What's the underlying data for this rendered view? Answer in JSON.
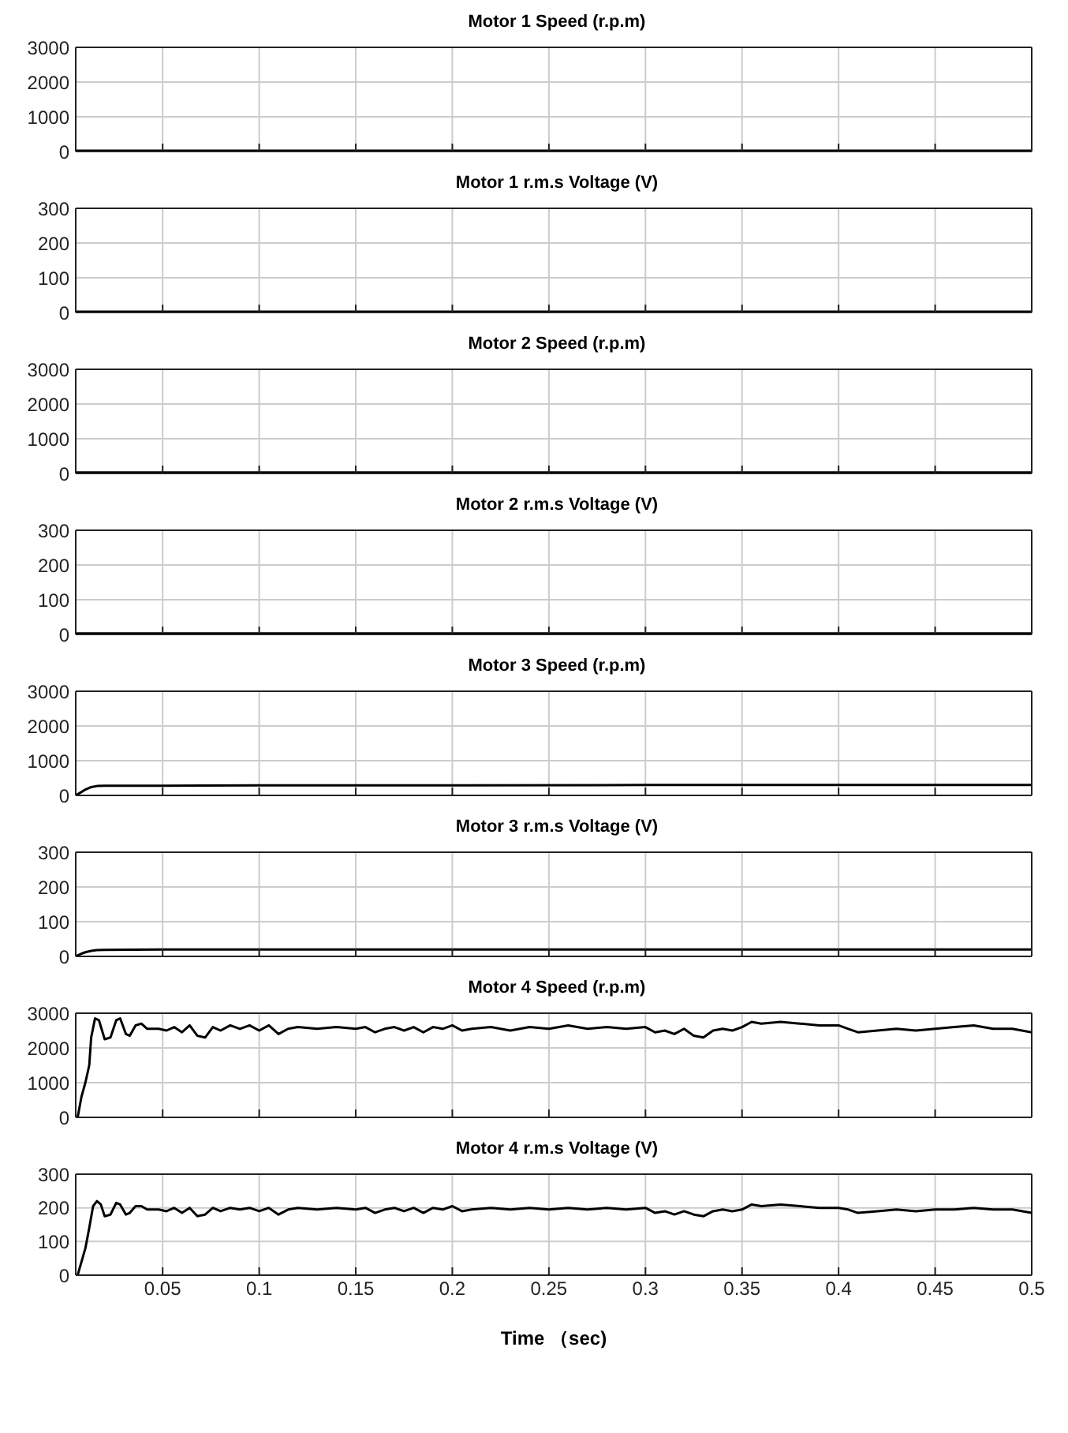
{
  "chart_data": [
    {
      "type": "line",
      "title": "Motor 1 Speed (r.p.m)",
      "x": [
        0.005,
        0.1,
        0.2,
        0.3,
        0.4,
        0.5
      ],
      "series": [
        {
          "color": "#000000",
          "values": [
            20,
            20,
            20,
            20,
            20,
            20
          ]
        }
      ],
      "xlim": [
        0.005,
        0.5
      ],
      "xticks": [
        0.05,
        0.1,
        0.15,
        0.2,
        0.25,
        0.3,
        0.35,
        0.4,
        0.45,
        0.5
      ],
      "ylim": [
        0,
        3000
      ],
      "yticks": [
        0,
        1000,
        2000,
        3000
      ],
      "grid": true,
      "tick_labels": "y"
    },
    {
      "type": "line",
      "title": "Motor 1 r.m.s Voltage (V)",
      "x": [
        0.005,
        0.1,
        0.2,
        0.3,
        0.4,
        0.5
      ],
      "series": [
        {
          "color": "#000000",
          "values": [
            2,
            2,
            2,
            2,
            2,
            2
          ]
        }
      ],
      "xlim": [
        0.005,
        0.5
      ],
      "xticks": [
        0.05,
        0.1,
        0.15,
        0.2,
        0.25,
        0.3,
        0.35,
        0.4,
        0.45,
        0.5
      ],
      "ylim": [
        0,
        300
      ],
      "yticks": [
        0,
        100,
        200,
        300
      ],
      "grid": true,
      "tick_labels": "y"
    },
    {
      "type": "line",
      "title": "Motor 2 Speed (r.p.m)",
      "x": [
        0.005,
        0.1,
        0.2,
        0.3,
        0.4,
        0.5
      ],
      "series": [
        {
          "color": "#000000",
          "values": [
            30,
            30,
            30,
            30,
            30,
            30
          ]
        }
      ],
      "xlim": [
        0.005,
        0.5
      ],
      "xticks": [
        0.05,
        0.1,
        0.15,
        0.2,
        0.25,
        0.3,
        0.35,
        0.4,
        0.45,
        0.5
      ],
      "ylim": [
        0,
        3000
      ],
      "yticks": [
        0,
        1000,
        2000,
        3000
      ],
      "grid": true,
      "tick_labels": "y"
    },
    {
      "type": "line",
      "title": "Motor 2 r.m.s Voltage (V)",
      "x": [
        0.005,
        0.1,
        0.2,
        0.3,
        0.4,
        0.5
      ],
      "series": [
        {
          "color": "#000000",
          "values": [
            3,
            3,
            3,
            3,
            3,
            3
          ]
        }
      ],
      "xlim": [
        0.005,
        0.5
      ],
      "xticks": [
        0.05,
        0.1,
        0.15,
        0.2,
        0.25,
        0.3,
        0.35,
        0.4,
        0.45,
        0.5
      ],
      "ylim": [
        0,
        300
      ],
      "yticks": [
        0,
        100,
        200,
        300
      ],
      "grid": true,
      "tick_labels": "y"
    },
    {
      "type": "line",
      "title": "Motor 3 Speed (r.p.m)",
      "x": [
        0.005,
        0.008,
        0.01,
        0.013,
        0.016,
        0.02,
        0.05,
        0.1,
        0.2,
        0.3,
        0.4,
        0.5
      ],
      "series": [
        {
          "color": "#000000",
          "values": [
            0,
            100,
            170,
            240,
            270,
            280,
            280,
            290,
            290,
            300,
            300,
            300
          ]
        }
      ],
      "xlim": [
        0.005,
        0.5
      ],
      "xticks": [
        0.05,
        0.1,
        0.15,
        0.2,
        0.25,
        0.3,
        0.35,
        0.4,
        0.45,
        0.5
      ],
      "ylim": [
        0,
        3000
      ],
      "yticks": [
        0,
        1000,
        2000,
        3000
      ],
      "grid": true,
      "tick_labels": "y"
    },
    {
      "type": "line",
      "title": "Motor 3 r.m.s Voltage (V)",
      "x": [
        0.005,
        0.008,
        0.01,
        0.013,
        0.016,
        0.02,
        0.05,
        0.1,
        0.2,
        0.3,
        0.4,
        0.5
      ],
      "series": [
        {
          "color": "#000000",
          "values": [
            0,
            8,
            12,
            16,
            18,
            19,
            20,
            20,
            20,
            20,
            20,
            20
          ]
        }
      ],
      "xlim": [
        0.005,
        0.5
      ],
      "xticks": [
        0.05,
        0.1,
        0.15,
        0.2,
        0.25,
        0.3,
        0.35,
        0.4,
        0.45,
        0.5
      ],
      "ylim": [
        0,
        300
      ],
      "yticks": [
        0,
        100,
        200,
        300
      ],
      "grid": true,
      "tick_labels": "y"
    },
    {
      "type": "line",
      "title": "Motor 4 Speed (r.p.m)",
      "x": [
        0.006,
        0.008,
        0.01,
        0.012,
        0.013,
        0.015,
        0.017,
        0.02,
        0.023,
        0.026,
        0.028,
        0.031,
        0.033,
        0.036,
        0.039,
        0.042,
        0.048,
        0.052,
        0.056,
        0.06,
        0.064,
        0.068,
        0.072,
        0.076,
        0.08,
        0.085,
        0.09,
        0.095,
        0.1,
        0.105,
        0.11,
        0.115,
        0.12,
        0.13,
        0.14,
        0.15,
        0.155,
        0.16,
        0.165,
        0.17,
        0.175,
        0.18,
        0.185,
        0.19,
        0.195,
        0.2,
        0.205,
        0.21,
        0.22,
        0.23,
        0.24,
        0.25,
        0.26,
        0.27,
        0.28,
        0.29,
        0.3,
        0.305,
        0.31,
        0.315,
        0.32,
        0.325,
        0.33,
        0.335,
        0.34,
        0.345,
        0.35,
        0.355,
        0.36,
        0.37,
        0.38,
        0.39,
        0.4,
        0.405,
        0.41,
        0.42,
        0.43,
        0.44,
        0.45,
        0.46,
        0.47,
        0.48,
        0.49,
        0.5
      ],
      "series": [
        {
          "color": "#000000",
          "values": [
            0,
            600,
            1000,
            1500,
            2300,
            2850,
            2800,
            2250,
            2300,
            2800,
            2850,
            2400,
            2350,
            2650,
            2700,
            2550,
            2550,
            2500,
            2600,
            2450,
            2650,
            2350,
            2300,
            2600,
            2500,
            2650,
            2550,
            2650,
            2500,
            2650,
            2400,
            2550,
            2600,
            2550,
            2600,
            2550,
            2600,
            2450,
            2550,
            2600,
            2500,
            2600,
            2450,
            2600,
            2550,
            2650,
            2500,
            2550,
            2600,
            2500,
            2600,
            2550,
            2650,
            2550,
            2600,
            2550,
            2600,
            2450,
            2500,
            2400,
            2550,
            2350,
            2300,
            2500,
            2550,
            2500,
            2600,
            2750,
            2700,
            2750,
            2700,
            2650,
            2650,
            2550,
            2450,
            2500,
            2550,
            2500,
            2550,
            2600,
            2650,
            2550,
            2550,
            2450
          ]
        }
      ],
      "xlim": [
        0.005,
        0.5
      ],
      "xticks": [
        0.05,
        0.1,
        0.15,
        0.2,
        0.25,
        0.3,
        0.35,
        0.4,
        0.45,
        0.5
      ],
      "ylim": [
        0,
        3000
      ],
      "yticks": [
        0,
        1000,
        2000,
        3000
      ],
      "grid": true,
      "tick_labels": "y"
    },
    {
      "type": "line",
      "title": "Motor 4 r.m.s Voltage (V)",
      "xlabel": "Time （sec)",
      "x": [
        0.006,
        0.008,
        0.01,
        0.012,
        0.014,
        0.016,
        0.018,
        0.02,
        0.023,
        0.026,
        0.028,
        0.031,
        0.033,
        0.036,
        0.039,
        0.042,
        0.048,
        0.052,
        0.056,
        0.06,
        0.064,
        0.068,
        0.072,
        0.076,
        0.08,
        0.085,
        0.09,
        0.095,
        0.1,
        0.105,
        0.11,
        0.115,
        0.12,
        0.13,
        0.14,
        0.15,
        0.155,
        0.16,
        0.165,
        0.17,
        0.175,
        0.18,
        0.185,
        0.19,
        0.195,
        0.2,
        0.205,
        0.21,
        0.22,
        0.23,
        0.24,
        0.25,
        0.26,
        0.27,
        0.28,
        0.29,
        0.3,
        0.305,
        0.31,
        0.315,
        0.32,
        0.325,
        0.33,
        0.335,
        0.34,
        0.345,
        0.35,
        0.355,
        0.36,
        0.37,
        0.38,
        0.39,
        0.4,
        0.405,
        0.41,
        0.42,
        0.43,
        0.44,
        0.45,
        0.46,
        0.47,
        0.48,
        0.49,
        0.5
      ],
      "series": [
        {
          "color": "#000000",
          "values": [
            0,
            40,
            80,
            140,
            205,
            220,
            210,
            175,
            180,
            215,
            210,
            180,
            185,
            205,
            205,
            195,
            195,
            190,
            200,
            185,
            200,
            175,
            180,
            200,
            190,
            200,
            195,
            200,
            190,
            200,
            180,
            195,
            200,
            195,
            200,
            195,
            200,
            185,
            195,
            200,
            190,
            200,
            185,
            200,
            195,
            205,
            190,
            195,
            200,
            195,
            200,
            195,
            200,
            195,
            200,
            195,
            200,
            185,
            190,
            180,
            190,
            180,
            175,
            190,
            195,
            190,
            195,
            210,
            205,
            210,
            205,
            200,
            200,
            195,
            185,
            190,
            195,
            190,
            195,
            195,
            200,
            195,
            195,
            185
          ]
        }
      ],
      "xlim": [
        0.005,
        0.5
      ],
      "xticks": [
        0.05,
        0.1,
        0.15,
        0.2,
        0.25,
        0.3,
        0.35,
        0.4,
        0.45,
        0.5
      ],
      "ylim": [
        0,
        300
      ],
      "yticks": [
        0,
        100,
        200,
        300
      ],
      "grid": true
    }
  ]
}
